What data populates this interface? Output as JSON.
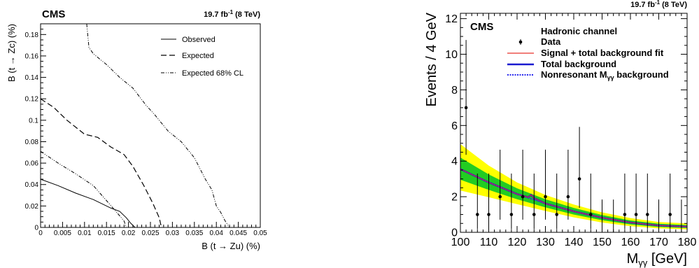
{
  "left": {
    "header": {
      "experiment": "CMS",
      "lumi": "19.7 fb",
      "lumi_sup": "-1",
      "lumi_energy": " (8 TeV)"
    },
    "xlabel": "B (t → Zu) (%)",
    "ylabel": "B (t → Zc) (%)",
    "xticks": [
      "0",
      "0.005",
      "0.01",
      "0.015",
      "0.02",
      "0.025",
      "0.03",
      "0.035",
      "0.04",
      "0.045",
      "0.05"
    ],
    "yticks": [
      "0",
      "0.02",
      "0.04",
      "0.06",
      "0.08",
      "0.1",
      "0.12",
      "0.14",
      "0.16",
      "0.18"
    ],
    "legend": [
      "Observed",
      "Expected",
      "Expected 68% CL"
    ]
  },
  "right": {
    "header": {
      "experiment": "CMS",
      "lumi": "19.7 fb",
      "lumi_sup": "-1",
      "lumi_energy": " (8 TeV)"
    },
    "channel": "Hadronic channel",
    "xlabel": "M",
    "xlabel_sub": "γγ",
    "xlabel_unit": " [GeV]",
    "ylabel": "Events / 4 GeV",
    "xticks": [
      "100",
      "110",
      "120",
      "130",
      "140",
      "150",
      "160",
      "170",
      "180"
    ],
    "yticks": [
      "0",
      "2",
      "4",
      "6",
      "8",
      "10",
      "12"
    ],
    "legend": {
      "data": "Data",
      "signal": "Signal + total background fit",
      "total": "Total background",
      "nonres": "Nonresonant M",
      "nonres_sub": "γγ",
      "nonres_tail": " background"
    }
  },
  "colors": {
    "signal": "#e8322a",
    "total": "#1a1ad0",
    "nonres": "#2a2aee",
    "band2": "#ffff00",
    "band1": "#22cc22"
  },
  "chart_data": [
    {
      "type": "line",
      "xlabel": "B (t → Zu) (%)",
      "ylabel": "B (t → Zc) (%)",
      "xlim": [
        0,
        0.05
      ],
      "ylim": [
        0,
        0.19
      ],
      "legend_position": "top-right",
      "series": [
        {
          "name": "Observed",
          "style": "solid",
          "x": [
            0,
            0.004,
            0.008,
            0.012,
            0.016,
            0.018,
            0.0195,
            0.0205,
            0.0215
          ],
          "y": [
            0.045,
            0.039,
            0.032,
            0.026,
            0.018,
            0.015,
            0.009,
            0.004,
            0
          ]
        },
        {
          "name": "Expected",
          "style": "dashed",
          "x": [
            0,
            0.003,
            0.006,
            0.01,
            0.013,
            0.016,
            0.019,
            0.021,
            0.0235,
            0.0255,
            0.027,
            0.0275
          ],
          "y": [
            0.12,
            0.112,
            0.1,
            0.087,
            0.084,
            0.075,
            0.068,
            0.057,
            0.039,
            0.023,
            0.009,
            0
          ]
        },
        {
          "name": "Expected 68% CL",
          "style": "dashdot",
          "x": [
            0,
            0.004,
            0.008,
            0.012,
            0.0165,
            0.019,
            0.0195
          ],
          "y": [
            0.071,
            0.06,
            0.05,
            0.039,
            0.018,
            0.006,
            0
          ]
        },
        {
          "name": "Expected 68% CL",
          "style": "dashdot",
          "x": [
            0.0105,
            0.011,
            0.012,
            0.015,
            0.018,
            0.021,
            0.024,
            0.026,
            0.029,
            0.032,
            0.035,
            0.0375,
            0.039,
            0.04,
            0.041,
            0.042,
            0.043
          ],
          "y": [
            0.19,
            0.168,
            0.162,
            0.152,
            0.14,
            0.13,
            0.114,
            0.105,
            0.09,
            0.08,
            0.065,
            0.045,
            0.035,
            0.02,
            0.014,
            0.006,
            0
          ]
        }
      ]
    },
    {
      "type": "scatter",
      "xlabel": "M_γγ [GeV]",
      "ylabel": "Events / 4 GeV",
      "xlim": [
        100,
        180
      ],
      "ylim": [
        0,
        12.3
      ],
      "legend_position": "top",
      "series": [
        {
          "name": "Data",
          "x": [
            102,
            106,
            110,
            114,
            118,
            122,
            126,
            130,
            134,
            138,
            142,
            146,
            150,
            154,
            158,
            162,
            166,
            170,
            174,
            178
          ],
          "y": [
            7,
            1,
            1,
            2,
            1,
            2,
            1,
            2,
            1,
            2,
            3,
            1,
            0,
            0,
            1,
            1,
            1,
            0,
            1,
            0
          ],
          "err_low": [
            2.65,
            0.83,
            0.83,
            1.29,
            0.83,
            1.29,
            0.83,
            1.29,
            0.83,
            1.29,
            1.63,
            0.83,
            0,
            0,
            0.83,
            0.83,
            0.83,
            0,
            0.83,
            0
          ],
          "err_high": [
            3.8,
            2.3,
            2.3,
            2.64,
            2.3,
            2.64,
            2.3,
            2.64,
            2.3,
            2.64,
            2.92,
            2.3,
            1.84,
            1.84,
            2.3,
            2.3,
            2.3,
            1.84,
            2.3,
            1.84
          ]
        },
        {
          "name": "Nonresonant M γγ background",
          "x": [
            100,
            110,
            120,
            130,
            140,
            150,
            160,
            170,
            180
          ],
          "y": [
            3.55,
            2.8,
            2.15,
            1.62,
            1.18,
            0.82,
            0.55,
            0.38,
            0.32
          ]
        },
        {
          "name": "Total background",
          "x": [
            100,
            110,
            120,
            124,
            125,
            126,
            130,
            140,
            150,
            160,
            170,
            180
          ],
          "y": [
            3.55,
            2.8,
            2.15,
            1.97,
            2.1,
            1.92,
            1.62,
            1.18,
            0.82,
            0.55,
            0.38,
            0.32
          ]
        },
        {
          "name": "Signal + total background fit",
          "x": [
            100,
            110,
            120,
            124,
            125,
            126,
            130,
            140,
            150,
            160,
            170,
            180
          ],
          "y": [
            3.55,
            2.8,
            2.15,
            1.97,
            2.1,
            1.92,
            1.62,
            1.18,
            0.82,
            0.55,
            0.38,
            0.32
          ]
        }
      ],
      "bands": {
        "x": [
          100,
          110,
          120,
          130,
          140,
          150,
          160,
          170,
          180
        ],
        "inner_low": [
          2.95,
          2.38,
          1.86,
          1.4,
          1.0,
          0.68,
          0.44,
          0.3,
          0.24
        ],
        "inner_high": [
          4.2,
          3.25,
          2.47,
          1.86,
          1.37,
          0.97,
          0.67,
          0.48,
          0.41
        ],
        "outer_low": [
          2.35,
          1.97,
          1.58,
          1.2,
          0.84,
          0.55,
          0.34,
          0.22,
          0.17
        ],
        "outer_high": [
          4.95,
          3.75,
          2.8,
          2.1,
          1.56,
          1.12,
          0.8,
          0.58,
          0.5
        ]
      }
    }
  ]
}
